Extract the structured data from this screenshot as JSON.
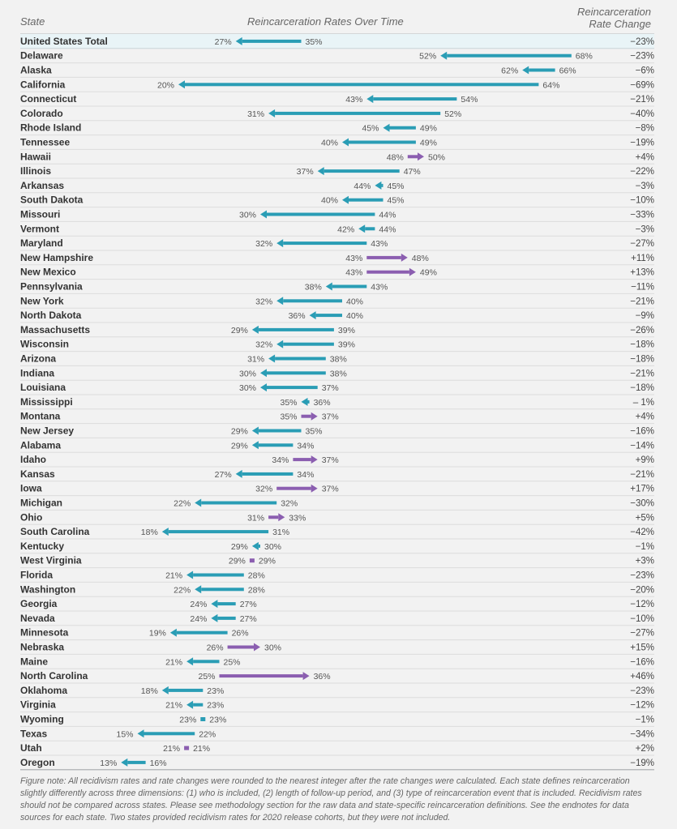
{
  "header": {
    "state": "State",
    "middle": "Reincarceration Rates Over Time",
    "change_line1": "Reincarceration",
    "change_line2": "Rate Change"
  },
  "colors": {
    "decrease": "#2a9db5",
    "increase": "#8b5eb0",
    "highlight_row": "#e9f4f7",
    "background": "#f2f2f2"
  },
  "chart_data": {
    "type": "arrow",
    "title": "Reincarceration Rates Over Time",
    "xlim": [
      0,
      75
    ],
    "unit": "%",
    "rows": [
      {
        "state": "United States Total",
        "start": 35,
        "end": 27,
        "change": "−23%"
      },
      {
        "state": "Delaware",
        "start": 68,
        "end": 52,
        "change": "−23%"
      },
      {
        "state": "Alaska",
        "start": 66,
        "end": 62,
        "change": "−6%"
      },
      {
        "state": "California",
        "start": 64,
        "end": 20,
        "change": "−69%"
      },
      {
        "state": "Connecticut",
        "start": 54,
        "end": 43,
        "change": "−21%"
      },
      {
        "state": "Colorado",
        "start": 52,
        "end": 31,
        "change": "−40%"
      },
      {
        "state": "Rhode Island",
        "start": 49,
        "end": 45,
        "change": "−8%"
      },
      {
        "state": "Tennessee",
        "start": 49,
        "end": 40,
        "change": "−19%"
      },
      {
        "state": "Hawaii",
        "start": 48,
        "end": 50,
        "change": "+4%"
      },
      {
        "state": "Illinois",
        "start": 47,
        "end": 37,
        "change": "−22%"
      },
      {
        "state": "Arkansas",
        "start": 45,
        "end": 44,
        "change": "−3%"
      },
      {
        "state": "South Dakota",
        "start": 45,
        "end": 40,
        "change": "−10%"
      },
      {
        "state": "Missouri",
        "start": 44,
        "end": 30,
        "change": "−33%"
      },
      {
        "state": "Vermont",
        "start": 44,
        "end": 42,
        "change": "−3%"
      },
      {
        "state": "Maryland",
        "start": 43,
        "end": 32,
        "change": "−27%"
      },
      {
        "state": "New Hampshire",
        "start": 43,
        "end": 48,
        "change": "+11%"
      },
      {
        "state": "New Mexico",
        "start": 43,
        "end": 49,
        "change": "+13%"
      },
      {
        "state": "Pennsylvania",
        "start": 43,
        "end": 38,
        "change": "−11%"
      },
      {
        "state": "New York",
        "start": 40,
        "end": 32,
        "change": "−21%"
      },
      {
        "state": "North Dakota",
        "start": 40,
        "end": 36,
        "change": "−9%"
      },
      {
        "state": "Massachusetts",
        "start": 39,
        "end": 29,
        "change": "−26%"
      },
      {
        "state": "Wisconsin",
        "start": 39,
        "end": 32,
        "change": "−18%"
      },
      {
        "state": "Arizona",
        "start": 38,
        "end": 31,
        "change": "−18%"
      },
      {
        "state": "Indiana",
        "start": 38,
        "end": 30,
        "change": "−21%"
      },
      {
        "state": "Louisiana",
        "start": 37,
        "end": 30,
        "change": "−18%"
      },
      {
        "state": "Mississippi",
        "start": 36,
        "end": 35,
        "change": "– 1%"
      },
      {
        "state": "Montana",
        "start": 35,
        "end": 37,
        "change": "+4%"
      },
      {
        "state": "New Jersey",
        "start": 35,
        "end": 29,
        "change": "−16%"
      },
      {
        "state": "Alabama",
        "start": 34,
        "end": 29,
        "change": "−14%"
      },
      {
        "state": "Idaho",
        "start": 34,
        "end": 37,
        "change": "+9%"
      },
      {
        "state": "Kansas",
        "start": 34,
        "end": 27,
        "change": "−21%"
      },
      {
        "state": "Iowa",
        "start": 32,
        "end": 37,
        "change": "+17%"
      },
      {
        "state": "Michigan",
        "start": 32,
        "end": 22,
        "change": "−30%"
      },
      {
        "state": "Ohio",
        "start": 31,
        "end": 33,
        "change": "+5%"
      },
      {
        "state": "South Carolina",
        "start": 31,
        "end": 18,
        "change": "−42%"
      },
      {
        "state": "Kentucky",
        "start": 30,
        "end": 29,
        "change": "−1%"
      },
      {
        "state": "West Virginia",
        "start": 29,
        "end": 29,
        "change": "+3%"
      },
      {
        "state": "Florida",
        "start": 28,
        "end": 21,
        "change": "−23%"
      },
      {
        "state": "Washington",
        "start": 28,
        "end": 22,
        "change": "−20%"
      },
      {
        "state": "Georgia",
        "start": 27,
        "end": 24,
        "change": "−12%"
      },
      {
        "state": "Nevada",
        "start": 27,
        "end": 24,
        "change": "−10%"
      },
      {
        "state": "Minnesota",
        "start": 26,
        "end": 19,
        "change": "−27%"
      },
      {
        "state": "Nebraska",
        "start": 26,
        "end": 30,
        "change": "+15%"
      },
      {
        "state": "Maine",
        "start": 25,
        "end": 21,
        "change": "−16%"
      },
      {
        "state": "North Carolina",
        "start": 25,
        "end": 36,
        "change": "+46%"
      },
      {
        "state": "Oklahoma",
        "start": 23,
        "end": 18,
        "change": "−23%"
      },
      {
        "state": "Virginia",
        "start": 23,
        "end": 21,
        "change": "−12%"
      },
      {
        "state": "Wyoming",
        "start": 23,
        "end": 23,
        "change": "−1%"
      },
      {
        "state": "Texas",
        "start": 22,
        "end": 15,
        "change": "−34%"
      },
      {
        "state": "Utah",
        "start": 21,
        "end": 21,
        "change": "+2%"
      },
      {
        "state": "Oregon",
        "start": 16,
        "end": 13,
        "change": "−19%"
      }
    ]
  },
  "note": "Figure note: All recidivism rates and rate changes were rounded to the nearest integer after the rate changes were calculated. Each state defines reincarceration slightly differently across three dimensions: (1) who is included, (2) length of follow-up period, and (3) type of reincarceration event that is included. Recidivism rates should not be compared across states. Please see methodology section for the raw data and state-specific reincarceration definitions. See the endnotes for data sources for each state. Two states provided recidivism rates for 2020 release cohorts, but they were not included."
}
